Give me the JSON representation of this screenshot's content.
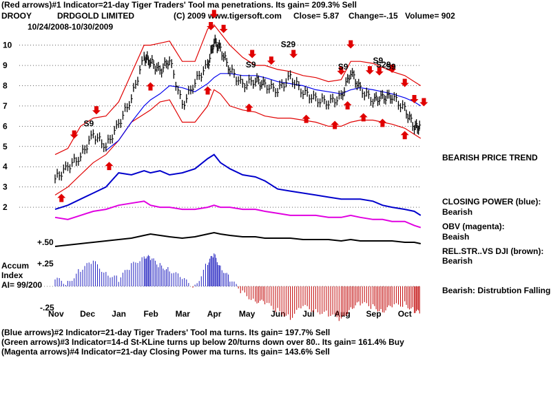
{
  "header": {
    "line1": "(Red arrows)#1 Indicator=21-day Tiger Traders' Tool ma penetrations. Its gain= 209.3% Sell",
    "ticker": "DROOY",
    "company": "DRDGOLD LIMITED",
    "copyright": "(C) 2009 www.tigersoft.com",
    "close": "Close=  5.87",
    "change": "Change=-.15",
    "volume": "Volume= 902",
    "date_range": "10/24/2008-10/30/2009"
  },
  "side_notes": {
    "trend": "BEARISH PRICE TREND",
    "closing_power": "CLOSING POWER (blue):",
    "closing_power_state": "Bearish",
    "obv": "OBV (magenta):",
    "obv_state": "Beaish",
    "relstr": "REL.STR..VS DJI (brown):",
    "relstr_state": "Bearish",
    "accum_state": "Bearish:  Distrubtion Falling."
  },
  "accum": {
    "title1": "Accum",
    "title2": "Index",
    "ai": "AI= 99/200",
    "level_pos50": "+.50",
    "level_pos25": "+.25",
    "level_neg25": "-.25"
  },
  "footer": {
    "line1": "(Blue arrows)#2 Indicator=21-day Tiger Traders' Tool ma turns. Its gain= 197.7% Sell",
    "line2": "(Green arrows)#3 Indicator=14-d St-KLine turns up below 20/turns down over 80.. Its gain= 161.4% Buy",
    "line3": "(Magenta arrows)#4 Indicator=21-day Closing Power ma turns. Its gain= 143.6% Sell"
  },
  "colors": {
    "price": "#000000",
    "band": "#e00000",
    "ma": "#0000ee",
    "closing_power": "#0000cc",
    "obv": "#e000e0",
    "relstr": "#000000",
    "accum_pos": "#2020c0",
    "accum_neg": "#c00000",
    "grid": "#000000"
  },
  "chart_data": {
    "type": "line",
    "x_ticks": [
      "Nov",
      "Dec",
      "Jan",
      "Feb",
      "Mar",
      "Apr",
      "May",
      "Jun",
      "Jul",
      "Aug",
      "Sep",
      "Oct"
    ],
    "y_ticks": [
      2,
      3,
      4,
      5,
      6,
      7,
      8,
      9,
      10
    ],
    "ylim": [
      1.8,
      10.7
    ],
    "price_series": {
      "months": [
        0,
        0.4,
        0.8,
        1.2,
        1.6,
        2.0,
        2.4,
        2.8,
        3.0,
        3.3,
        3.6,
        4.0,
        4.4,
        4.8,
        5.0,
        5.2,
        5.5,
        5.9,
        6.3,
        6.6,
        7.0,
        7.4,
        7.8,
        8.2,
        8.6,
        9.0,
        9.3,
        9.6,
        10.0,
        10.3,
        10.6,
        11.0,
        11.3,
        11.5
      ],
      "close": [
        3.4,
        4.0,
        4.5,
        5.6,
        5.0,
        6.1,
        7.4,
        9.4,
        9.2,
        8.7,
        9.3,
        7.0,
        8.2,
        9.0,
        10.2,
        9.8,
        8.8,
        8.0,
        8.3,
        8.0,
        7.8,
        8.4,
        7.7,
        7.3,
        7.2,
        7.4,
        8.7,
        7.8,
        7.3,
        7.4,
        7.5,
        6.8,
        6.0,
        5.9
      ]
    },
    "upper_band": [
      4.6,
      4.9,
      6.0,
      6.4,
      6.5,
      7.2,
      8.6,
      10.0,
      10.0,
      10.1,
      10.2,
      9.2,
      9.2,
      10.8,
      11.0,
      10.6,
      10.0,
      9.4,
      9.0,
      9.0,
      8.8,
      8.7,
      8.5,
      8.4,
      8.2,
      8.3,
      9.2,
      9.2,
      9.1,
      8.9,
      8.7,
      8.5,
      8.2,
      8.0
    ],
    "lower_band": [
      2.6,
      3.0,
      3.6,
      4.2,
      4.6,
      5.3,
      6.2,
      6.6,
      6.8,
      7.2,
      7.3,
      6.2,
      6.2,
      7.0,
      7.8,
      7.6,
      7.0,
      6.8,
      6.7,
      6.5,
      6.4,
      6.4,
      6.3,
      6.2,
      6.0,
      6.0,
      6.2,
      6.3,
      6.3,
      6.2,
      6.1,
      5.9,
      5.6,
      5.4
    ],
    "moving_average": [
      null,
      null,
      null,
      null,
      4.8,
      5.3,
      6.2,
      7.0,
      7.3,
      7.6,
      8.0,
      7.9,
      7.7,
      8.1,
      8.4,
      8.6,
      8.6,
      8.5,
      8.5,
      8.4,
      8.2,
      8.1,
      8.0,
      7.8,
      7.7,
      7.6,
      7.8,
      7.9,
      7.8,
      7.7,
      7.6,
      7.4,
      7.2,
      7.0
    ],
    "signal_labels": [
      {
        "text": "S9",
        "month": 0.9,
        "price": 6.0
      },
      {
        "text": "S9",
        "month": 6.0,
        "price": 8.9
      },
      {
        "text": "S29",
        "month": 7.1,
        "price": 9.9
      },
      {
        "text": "S9",
        "month": 8.9,
        "price": 8.8
      },
      {
        "text": "S9",
        "month": 10.0,
        "price": 9.1
      },
      {
        "text": "S29",
        "month": 10.1,
        "price": 8.9
      },
      {
        "text": "S9",
        "month": 10.4,
        "price": 8.8
      }
    ],
    "sell_arrow_months": [
      0.6,
      1.3,
      4.9,
      5.0,
      5.3,
      6.2,
      6.8,
      7.5,
      9.0,
      9.3,
      9.9,
      10.2,
      10.6,
      11.0,
      11.3,
      11.6
    ],
    "buy_arrow_months": [
      0.2,
      1.7,
      3.0,
      4.8,
      6.1,
      7.9,
      8.8,
      9.2,
      9.7,
      10.3,
      11.0
    ],
    "closing_power": [
      1.9,
      2.1,
      2.4,
      2.7,
      3.0,
      3.7,
      3.6,
      3.8,
      3.7,
      3.8,
      3.6,
      3.7,
      3.9,
      4.4,
      4.6,
      4.2,
      3.9,
      3.6,
      3.5,
      3.3,
      2.9,
      2.8,
      2.7,
      2.6,
      2.5,
      2.4,
      2.4,
      2.4,
      2.3,
      2.1,
      2.0,
      1.9,
      1.8,
      1.6
    ],
    "obv": [
      1.5,
      1.4,
      1.6,
      1.8,
      1.9,
      2.1,
      2.2,
      2.3,
      2.1,
      2.0,
      2.0,
      1.9,
      1.9,
      2.0,
      2.1,
      2.0,
      2.0,
      1.9,
      1.9,
      1.8,
      1.7,
      1.6,
      1.6,
      1.6,
      1.5,
      1.5,
      1.6,
      1.5,
      1.4,
      1.4,
      1.3,
      1.3,
      1.1,
      1.0
    ],
    "relstr": [
      0.1,
      0.15,
      0.2,
      0.25,
      0.3,
      0.35,
      0.4,
      0.5,
      0.55,
      0.5,
      0.45,
      0.4,
      0.45,
      0.55,
      0.6,
      0.55,
      0.5,
      0.45,
      0.45,
      0.4,
      0.4,
      0.4,
      0.35,
      0.35,
      0.35,
      0.3,
      0.35,
      0.3,
      0.3,
      0.3,
      0.3,
      0.25,
      0.25,
      0.2
    ],
    "accum_index": [
      0.1,
      0.05,
      0.25,
      0.35,
      0.2,
      0.1,
      0.3,
      0.45,
      0.4,
      0.3,
      0.25,
      0.1,
      0.0,
      0.35,
      0.45,
      0.3,
      0.1,
      -0.1,
      -0.2,
      -0.25,
      -0.35,
      -0.45,
      -0.3,
      -0.35,
      -0.4,
      -0.5,
      -0.3,
      -0.25,
      -0.3,
      -0.35,
      -0.3,
      -0.25,
      -0.35,
      -0.4
    ]
  }
}
